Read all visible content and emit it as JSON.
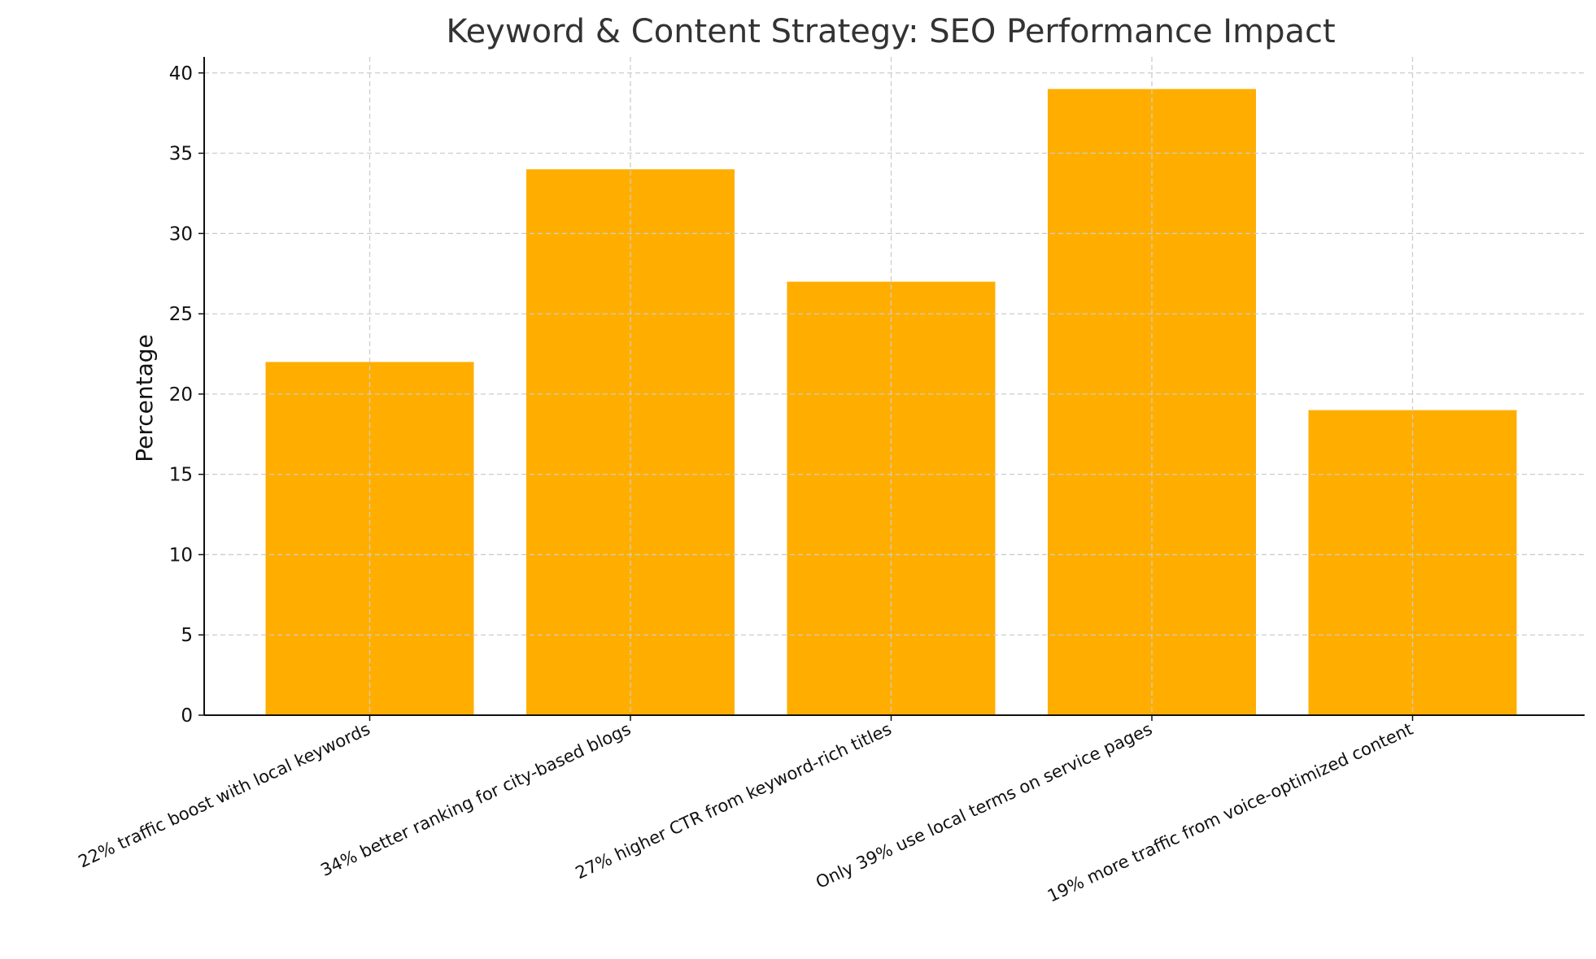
{
  "chart_data": {
    "type": "bar",
    "title": "Keyword & Content Strategy: SEO Performance Impact",
    "xlabel": "",
    "ylabel": "Percentage",
    "categories": [
      "22% traffic boost with local keywords",
      "34% better ranking for city-based blogs",
      "27% higher CTR from keyword-rich titles",
      "Only 39% use local terms on service pages",
      "19% more traffic from voice-optimized content"
    ],
    "values": [
      22,
      34,
      27,
      39,
      19
    ],
    "ylim": [
      0,
      41
    ],
    "yticks": [
      0,
      5,
      10,
      15,
      20,
      25,
      30,
      35,
      40
    ],
    "grid": true,
    "bar_color": "#FFAE00"
  }
}
